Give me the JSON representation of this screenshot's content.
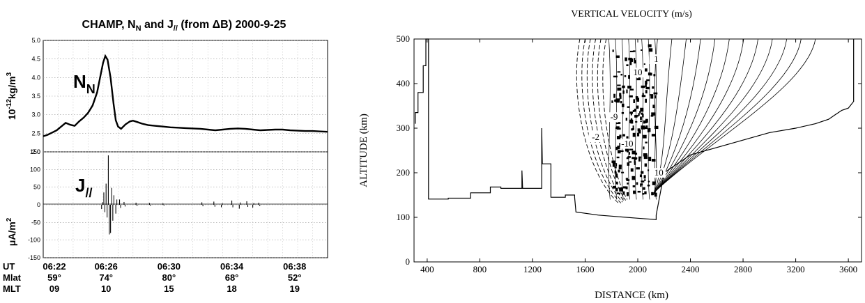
{
  "chart_data": [
    {
      "type": "line",
      "title": "CHAMP, N_N and J_// (from ΔB) 2000-9-25",
      "title_parts": {
        "a": "CHAMP, N",
        "a_sub": "N",
        "b": " and J",
        "b_sub": "//",
        "c": " (from ",
        "delta": "Δ",
        "d": "B) 2000-9-25"
      },
      "panels": [
        {
          "name": "N_N",
          "label": "N",
          "label_sub": "N",
          "ylabel_main": "10",
          "ylabel_sup": "-12",
          "ylabel_unit": "kg/m",
          "ylabel_unit_sup": "3",
          "ylim": [
            2.0,
            5.0
          ],
          "yticks": [
            "5.0",
            "4.5",
            "4.0",
            "3.5",
            "3.0",
            "2.5",
            "2.0"
          ],
          "x": [
            0,
            0.3,
            0.6,
            0.9,
            1.2,
            1.5,
            1.8,
            2.1,
            2.4,
            2.7,
            3.0,
            3.3,
            3.6,
            3.8,
            4.0,
            4.15,
            4.3,
            4.5,
            4.7,
            4.85,
            5.0,
            5.2,
            5.5,
            5.8,
            6.0,
            6.3,
            6.6,
            7.0,
            7.5,
            8.0,
            8.5,
            9.0,
            9.5,
            10.0,
            10.5,
            11.0,
            11.5,
            12.0,
            12.5,
            13.0,
            13.5,
            14.0,
            14.5,
            15.0,
            15.5,
            16.0,
            16.5,
            17.0,
            17.5,
            18.0,
            18.5,
            19.0
          ],
          "y": [
            2.42,
            2.46,
            2.52,
            2.58,
            2.68,
            2.78,
            2.73,
            2.7,
            2.82,
            2.92,
            3.05,
            3.25,
            3.6,
            4.0,
            4.4,
            4.58,
            4.48,
            4.0,
            3.3,
            2.85,
            2.68,
            2.62,
            2.74,
            2.82,
            2.84,
            2.8,
            2.76,
            2.72,
            2.7,
            2.68,
            2.66,
            2.65,
            2.64,
            2.63,
            2.62,
            2.6,
            2.58,
            2.6,
            2.62,
            2.63,
            2.62,
            2.6,
            2.58,
            2.59,
            2.6,
            2.6,
            2.58,
            2.57,
            2.56,
            2.56,
            2.55,
            2.54
          ]
        },
        {
          "name": "J_//",
          "label": "J",
          "label_sub": "//",
          "ylabel": "μA/m",
          "ylabel_sup": "2",
          "ylim": [
            -150,
            150
          ],
          "yticks": [
            "150",
            "100",
            "50",
            "0",
            "-50",
            "-100",
            "-150"
          ],
          "bursts": [
            {
              "x": 4.35,
              "amp": 140
            },
            {
              "x": 4.5,
              "amp": -80
            },
            {
              "x": 4.2,
              "amp": 60
            },
            {
              "x": 4.65,
              "amp": -45
            },
            {
              "x": 4.05,
              "amp": 35
            },
            {
              "x": 4.85,
              "amp": -25
            },
            {
              "x": 5.1,
              "amp": 15
            },
            {
              "x": 3.9,
              "amp": -12
            },
            {
              "x": 5.4,
              "amp": 8
            },
            {
              "x": 6.2,
              "amp": 6
            },
            {
              "x": 7.1,
              "amp": 5
            },
            {
              "x": 8.0,
              "amp": 4
            },
            {
              "x": 10.6,
              "amp": 7
            },
            {
              "x": 11.4,
              "amp": 9
            },
            {
              "x": 11.9,
              "amp": -7
            },
            {
              "x": 12.6,
              "amp": 12
            },
            {
              "x": 13.1,
              "amp": -11
            },
            {
              "x": 13.6,
              "amp": 10
            },
            {
              "x": 14.0,
              "amp": -8
            },
            {
              "x": 14.4,
              "amp": 6
            }
          ]
        }
      ],
      "xaxis_rows": [
        {
          "label": "UT",
          "values": [
            "06:22",
            "06:26",
            "06:30",
            "06:34",
            "06:38"
          ]
        },
        {
          "label": "Mlat",
          "values": [
            "59°",
            "74°",
            "80°",
            "68°",
            "52°"
          ]
        },
        {
          "label": "MLT",
          "values": [
            "09",
            "10",
            "15",
            "18",
            "19"
          ]
        }
      ]
    },
    {
      "type": "contour",
      "title": "VERTICAL VELOCITY (m/s)",
      "xlabel": "DISTANCE (km)",
      "ylabel": "ALTITUDE (km)",
      "xlim": [
        300,
        3700
      ],
      "ylim": [
        0,
        500
      ],
      "xticks": [
        400,
        800,
        1200,
        1600,
        2000,
        2400,
        2800,
        3200,
        3600
      ],
      "yticks": [
        0,
        100,
        200,
        300,
        400,
        500
      ],
      "terrain_boundary": [
        [
          310,
          310
        ],
        [
          310,
          335
        ],
        [
          330,
          335
        ],
        [
          330,
          380
        ],
        [
          370,
          380
        ],
        [
          370,
          440
        ],
        [
          390,
          440
        ],
        [
          390,
          500
        ],
        [
          410,
          500
        ],
        [
          410,
          141
        ],
        [
          560,
          141
        ],
        [
          560,
          143
        ],
        [
          730,
          143
        ],
        [
          730,
          155
        ],
        [
          880,
          155
        ],
        [
          880,
          168
        ],
        [
          960,
          168
        ],
        [
          960,
          165
        ],
        [
          1120,
          165
        ],
        [
          1120,
          205
        ],
        [
          1125,
          165
        ],
        [
          1270,
          165
        ],
        [
          1270,
          300
        ],
        [
          1275,
          220
        ],
        [
          1340,
          220
        ],
        [
          1340,
          145
        ],
        [
          1450,
          145
        ],
        [
          1450,
          150
        ],
        [
          1520,
          150
        ],
        [
          1520,
          145
        ]
      ],
      "upper_boundary": [
        [
          1520,
          145
        ],
        [
          1540,
          200
        ],
        [
          1570,
          250
        ],
        [
          1600,
          320
        ],
        [
          1620,
          380
        ],
        [
          1640,
          440
        ],
        [
          1650,
          500
        ]
      ],
      "right_boundary": [
        [
          2200,
          200
        ],
        [
          2400,
          240
        ],
        [
          2700,
          265
        ],
        [
          3000,
          290
        ],
        [
          3200,
          300
        ],
        [
          3350,
          310
        ],
        [
          3450,
          320
        ],
        [
          3500,
          330
        ],
        [
          3550,
          340
        ],
        [
          3600,
          345
        ],
        [
          3640,
          360
        ],
        [
          3640,
          500
        ]
      ],
      "labels": [
        "-2",
        "-10",
        "10",
        "-9",
        "10",
        "1"
      ],
      "label_positions": [
        [
          1680,
          275
        ],
        [
          1920,
          260
        ],
        [
          2160,
          195
        ],
        [
          1820,
          320
        ],
        [
          2000,
          420
        ],
        [
          2140,
          450
        ]
      ]
    }
  ]
}
